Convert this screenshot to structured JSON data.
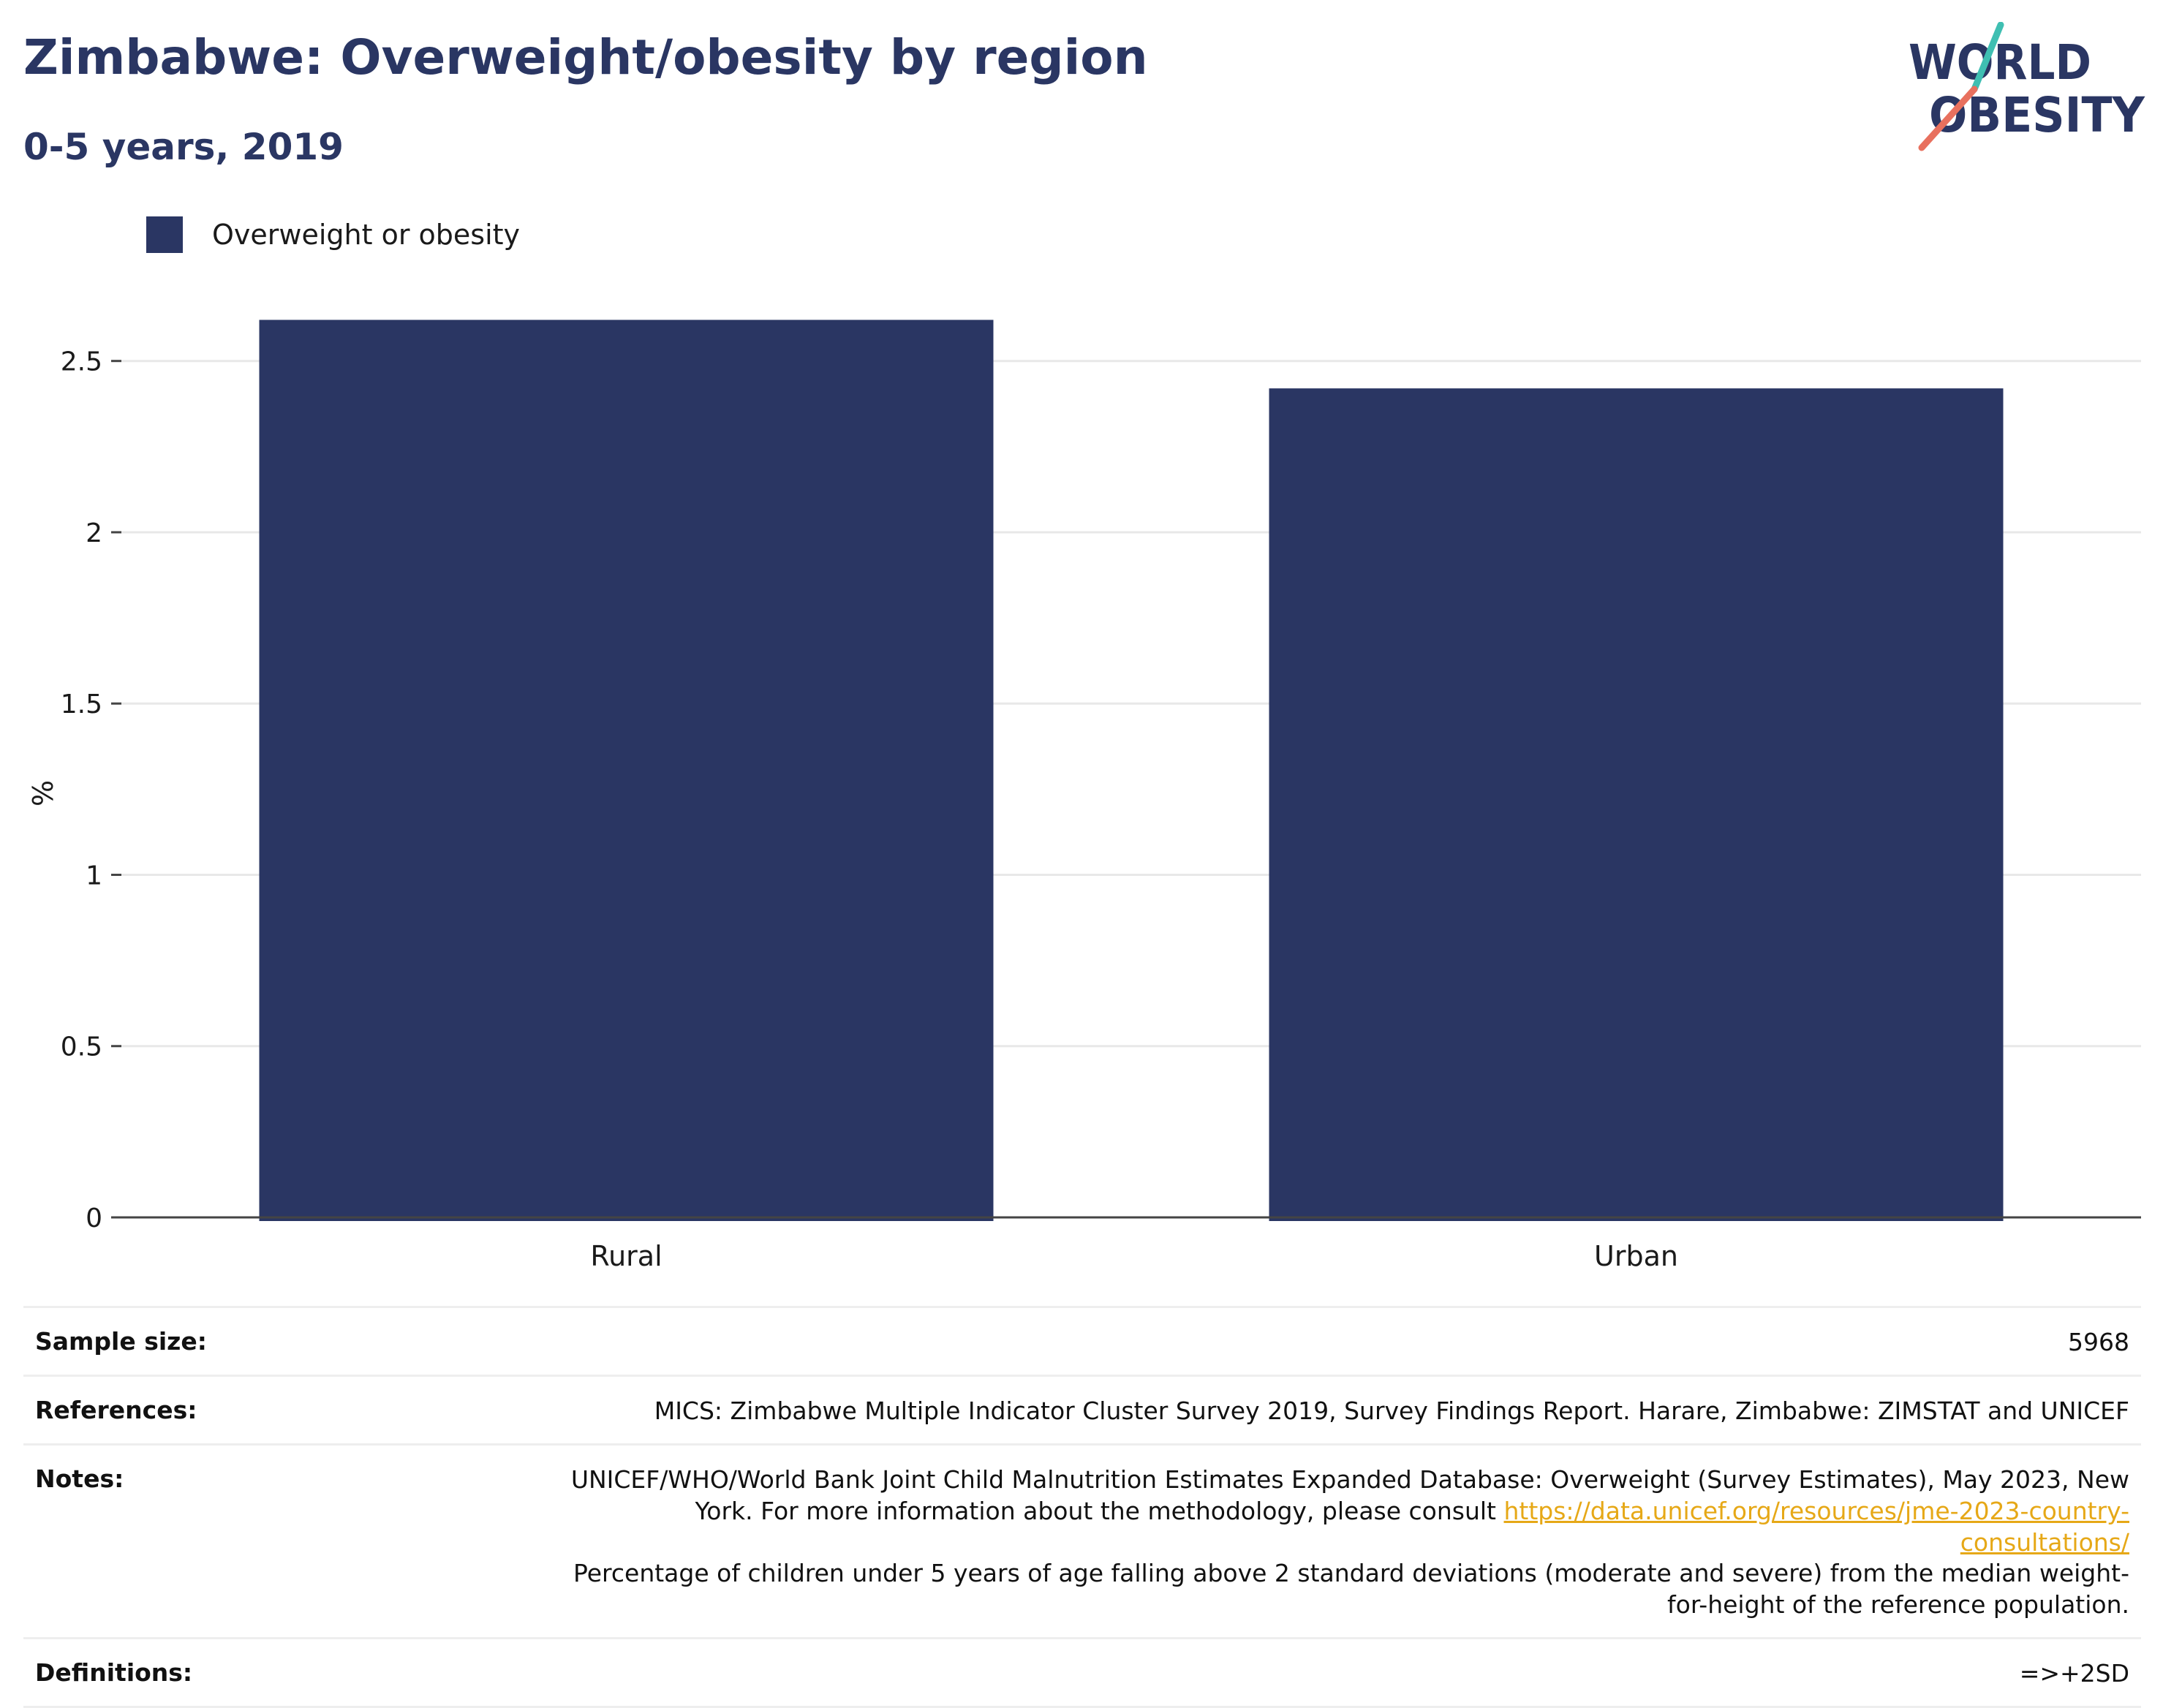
{
  "header": {
    "title": "Zimbabwe: Overweight/obesity by region",
    "subtitle": "0-5 years, 2019"
  },
  "logo": {
    "line1": "WORLD",
    "line2": "OBESITY"
  },
  "colors": {
    "bar": "#2a3663",
    "accent_teal": "#3fbfb2",
    "accent_coral": "#e8705e"
  },
  "chart_data": {
    "type": "bar",
    "categories": [
      "Rural",
      "Urban"
    ],
    "series": [
      {
        "name": "Overweight or obesity",
        "values": [
          2.62,
          2.42
        ]
      }
    ],
    "title": "Zimbabwe: Overweight/obesity by region",
    "subtitle": "0-5 years, 2019",
    "xlabel": "",
    "ylabel": "%",
    "ylim": [
      0,
      2.7
    ],
    "yticks": [
      0,
      0.5,
      1,
      1.5,
      2,
      2.5
    ],
    "yticklabels": [
      "0",
      "0.5",
      "1",
      "1.5",
      "2",
      "2.5"
    ],
    "grid": true,
    "legend": "top-left"
  },
  "info": {
    "sample_size_label": "Sample size:",
    "sample_size_value": "5968",
    "references_label": "References:",
    "references_value": "MICS: Zimbabwe Multiple Indicator Cluster Survey 2019, Survey Findings Report. Harare, Zimbabwe: ZIMSTAT and UNICEF",
    "notes_label": "Notes:",
    "notes_text_1": "UNICEF/WHO/World Bank Joint Child Malnutrition Estimates Expanded Database: Overweight (Survey Estimates), May 2023, New York. For more information about the methodology, please consult",
    "notes_link": "https://data.unicef.org/resources/jme-2023-country-consultations/",
    "notes_text_2": "Percentage of children under 5 years of age falling above 2 standard deviations (moderate and severe) from the median weight-for-height of the reference population.",
    "definitions_label": "Definitions:",
    "definitions_value": "=>+2SD"
  }
}
